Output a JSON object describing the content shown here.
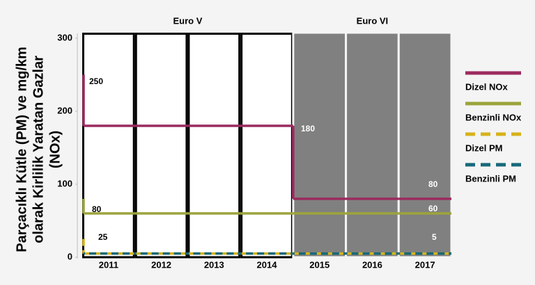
{
  "chart_data": {
    "type": "step",
    "ylabel": [
      "Parçacıklı Kütle (PM) ve mg/km",
      "olarak Kirlilik Yaratan Gazlar",
      "(NOx)"
    ],
    "categories": [
      "2011",
      "2012",
      "2013",
      "2014",
      "2015",
      "2016",
      "2017"
    ],
    "periods": [
      {
        "label": "Euro V",
        "from": "2011",
        "to": "2014",
        "shaded": false
      },
      {
        "label": "Euro VI",
        "from": "2015",
        "to": "2017",
        "shaded": true
      }
    ],
    "ylim": [
      0,
      300
    ],
    "yticks": [
      0,
      100,
      200,
      300
    ],
    "legend": "right",
    "series": [
      {
        "name": "Dizel NOx",
        "color": "#9b2b5f",
        "dashed": false,
        "start_value": 250,
        "values": [
          180,
          180,
          180,
          180,
          80,
          80,
          80
        ]
      },
      {
        "name": "Benzinli NOx",
        "color": "#9ba43c",
        "dashed": false,
        "start_value": 80,
        "values": [
          60,
          60,
          60,
          60,
          60,
          60,
          60
        ]
      },
      {
        "name": "Dizel PM",
        "color": "#d6b31c",
        "dashed": true,
        "start_value": 25,
        "values": [
          5,
          5,
          5,
          5,
          5,
          5,
          5
        ]
      },
      {
        "name": "Benzinli PM",
        "color": "#17697a",
        "dashed": true,
        "values": [
          5,
          5,
          5,
          5,
          5,
          5,
          5
        ]
      }
    ]
  }
}
